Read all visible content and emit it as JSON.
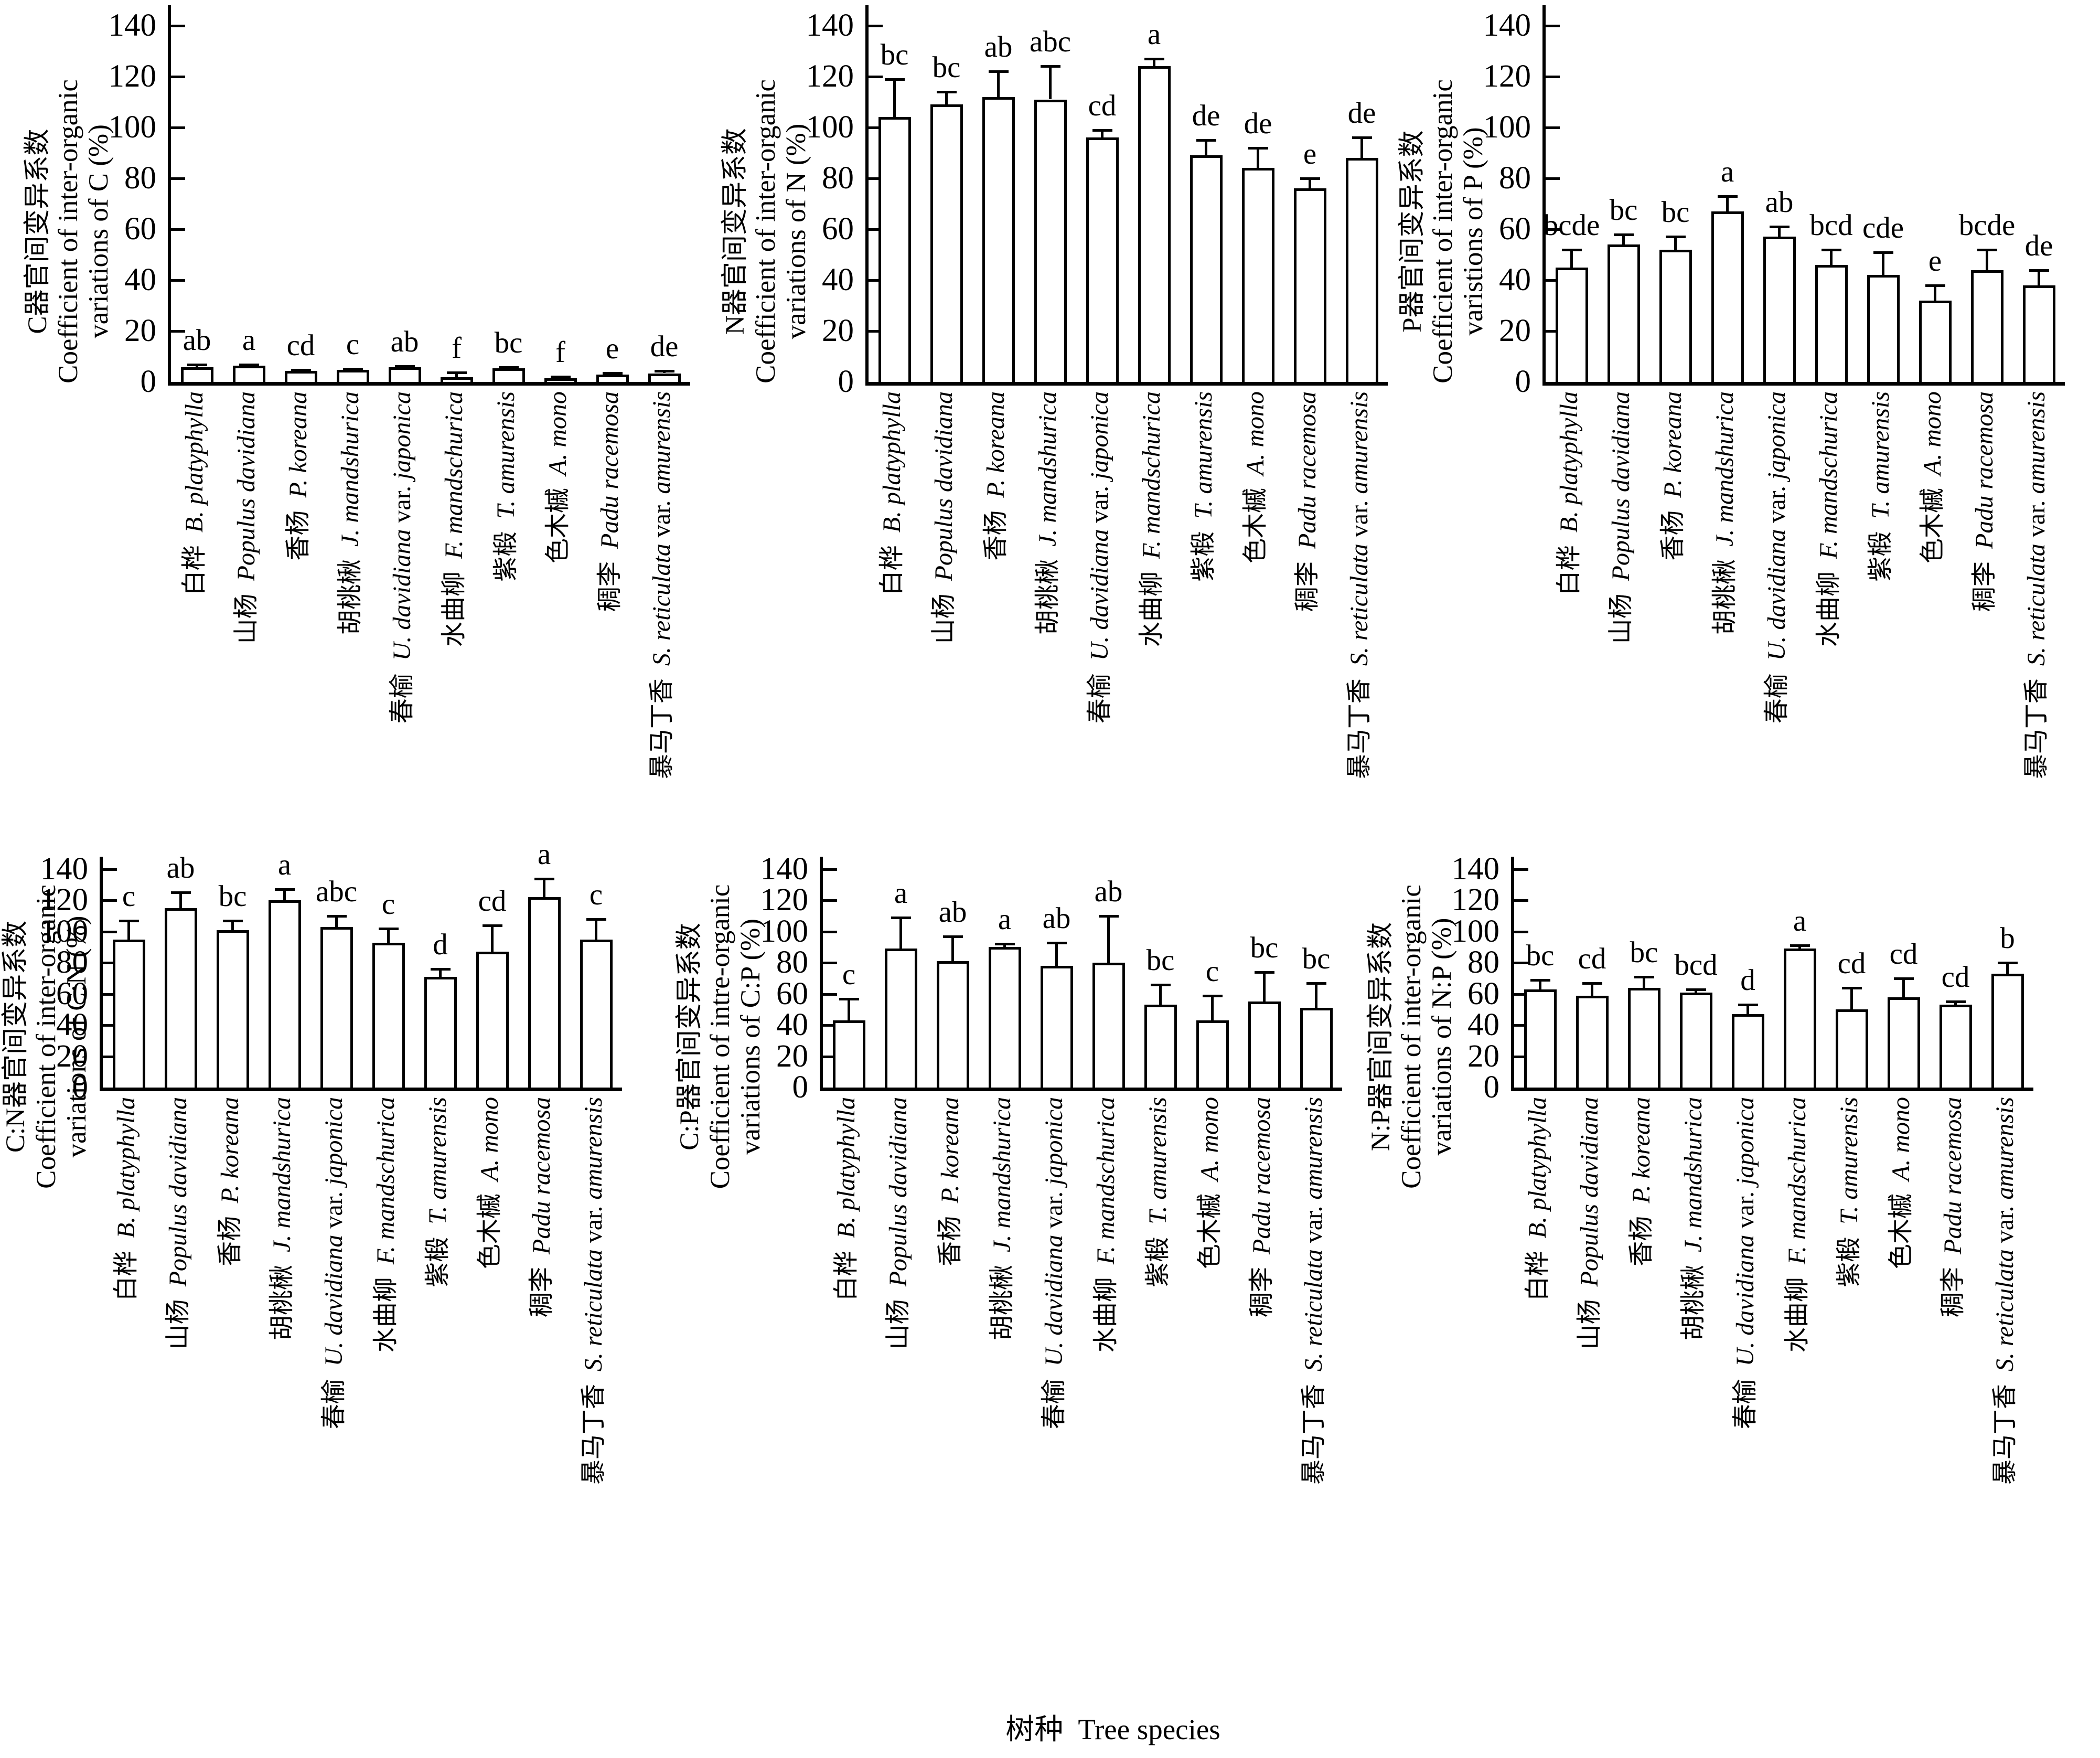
{
  "x_axis_title": {
    "zh": "树种",
    "en": "Tree species"
  },
  "species": [
    {
      "zh": "白桦",
      "latin": "B. platyphylla"
    },
    {
      "zh": "山杨",
      "latin": "Populus davidiana"
    },
    {
      "zh": "香杨",
      "latin": "P. koreana"
    },
    {
      "zh": "胡桃楸",
      "latin": "J. mandshurica"
    },
    {
      "zh": "春榆",
      "latin": "U. davidiana var. japonica"
    },
    {
      "zh": "水曲柳",
      "latin": "F. mandschurica"
    },
    {
      "zh": "紫椴",
      "latin": "T. amurensis"
    },
    {
      "zh": "色木槭",
      "latin": "A. mono"
    },
    {
      "zh": "稠李",
      "latin": "Padu racemosa"
    },
    {
      "zh": "暴马丁香",
      "latin": "S. reticulata var. amurensis"
    }
  ],
  "y_axis": {
    "min": 0,
    "max": 140,
    "step": 20,
    "ticks": [
      0,
      20,
      40,
      60,
      80,
      100,
      120,
      140
    ]
  },
  "chart_data": [
    {
      "type": "bar",
      "position": "top-left",
      "categories_from": "species",
      "ylabel_zh": "C器官间变异系数",
      "ylabel_en_lines": [
        "Coefficient of inter-organic",
        "variations of C (%)"
      ],
      "ylim": [
        0,
        148
      ],
      "grid": false,
      "values": [
        5.8,
        6.4,
        4.3,
        4.7,
        5.8,
        1.9,
        5.4,
        1.5,
        2.9,
        3.4
      ],
      "errors_up": [
        1.0,
        0.3,
        0.5,
        0.4,
        0.4,
        1.8,
        0.4,
        0.5,
        0.7,
        1.0
      ],
      "sig_letters": [
        "ab",
        "a",
        "cd",
        "c",
        "ab",
        "f",
        "bc",
        "f",
        "e",
        "de"
      ]
    },
    {
      "type": "bar",
      "position": "top-middle",
      "categories_from": "species",
      "ylabel_zh": "N器官间变异系数",
      "ylabel_en_lines": [
        "Coefficient of inter-organic",
        "variations of N (%)"
      ],
      "ylim": [
        0,
        148
      ],
      "grid": false,
      "values": [
        104,
        109,
        112,
        111,
        96,
        124,
        89,
        84,
        76,
        88
      ],
      "errors_up": [
        15,
        5,
        10,
        13,
        3,
        3,
        6,
        8,
        4,
        8
      ],
      "sig_letters": [
        "bc",
        "bc",
        "ab",
        "abc",
        "cd",
        "a",
        "de",
        "de",
        "e",
        "de"
      ]
    },
    {
      "type": "bar",
      "position": "top-right",
      "categories_from": "species",
      "ylabel_zh": "P器官间变异系数",
      "ylabel_en_lines": [
        "Coefficient of inter-organic",
        "varistions of P (%)"
      ],
      "ylim": [
        0,
        148
      ],
      "grid": false,
      "values": [
        45,
        54,
        52,
        67,
        57,
        46,
        42,
        32,
        44,
        38
      ],
      "errors_up": [
        7,
        4,
        5,
        6,
        4,
        6,
        9,
        6,
        8,
        6
      ],
      "sig_letters": [
        "bcde",
        "bc",
        "bc",
        "a",
        "ab",
        "bcd",
        "cde",
        "e",
        "bcde",
        "de"
      ]
    },
    {
      "type": "bar",
      "position": "bottom-left",
      "categories_from": "species",
      "ylabel_zh": "C:N器官间变异系数",
      "ylabel_en_lines": [
        "Coefficient of inter-organic",
        "variations of C:N (%)"
      ],
      "ylim": [
        0,
        148
      ],
      "grid": false,
      "values": [
        95,
        115,
        101,
        120,
        103,
        93,
        71,
        87,
        122,
        95
      ],
      "errors_up": [
        12,
        10,
        6,
        7,
        7,
        9,
        5,
        17,
        12,
        13
      ],
      "sig_letters": [
        "c",
        "ab",
        "bc",
        "a",
        "abc",
        "c",
        "d",
        "cd",
        "a",
        "c"
      ]
    },
    {
      "type": "bar",
      "position": "bottom-middle",
      "categories_from": "species",
      "ylabel_zh": "C:P器官间变异系数",
      "ylabel_en_lines": [
        "Coefficient of intre-organic",
        "variations of C:P (%)"
      ],
      "ylim": [
        0,
        148
      ],
      "grid": false,
      "values": [
        43,
        89,
        81,
        90,
        78,
        80,
        53,
        43,
        55,
        51
      ],
      "errors_up": [
        14,
        20,
        16,
        2,
        15,
        30,
        13,
        16,
        19,
        16
      ],
      "sig_letters": [
        "c",
        "a",
        "ab",
        "a",
        "ab",
        "ab",
        "bc",
        "c",
        "bc",
        "bc"
      ]
    },
    {
      "type": "bar",
      "position": "bottom-right",
      "categories_from": "species",
      "ylabel_zh": "N:P器官间变异系数",
      "ylabel_en_lines": [
        "Coefficient of inter-organic",
        "variations of N:P (%)"
      ],
      "ylim": [
        0,
        148
      ],
      "grid": false,
      "values": [
        63,
        59,
        64,
        61,
        47,
        89,
        50,
        58,
        53,
        73
      ],
      "errors_up": [
        6,
        8,
        7,
        2,
        6,
        2,
        14,
        12,
        2,
        7
      ],
      "sig_letters": [
        "bc",
        "cd",
        "bc",
        "bcd",
        "d",
        "a",
        "cd",
        "cd",
        "cd",
        "b"
      ]
    }
  ]
}
